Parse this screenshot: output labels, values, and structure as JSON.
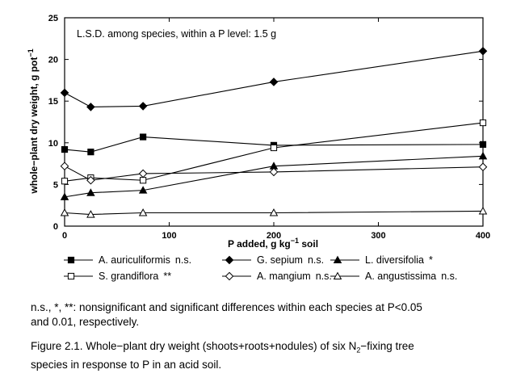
{
  "chart_data": {
    "type": "line",
    "xlabel": "P added, g kg",
    "xlabel_sup": "−1",
    "xlabel_suffix": " soil",
    "ylabel": "whole−plant dry weight, g pot",
    "ylabel_sup": "−1",
    "xlim": [
      0,
      400
    ],
    "ylim": [
      0,
      25
    ],
    "xticks": [
      0,
      100,
      200,
      300,
      400
    ],
    "yticks": [
      0,
      5,
      10,
      15,
      20,
      25
    ],
    "grid": false,
    "legend_position": "bottom",
    "annotation": "L.S.D. among species, within a P level:  1.5 g",
    "x": [
      0,
      25,
      75,
      200,
      400
    ],
    "series": [
      {
        "name": "A. auriculiformis",
        "sig": "n.s.",
        "marker": "square-filled",
        "values": [
          9.2,
          8.9,
          10.7,
          9.7,
          9.8
        ]
      },
      {
        "name": "G. sepium",
        "sig": "n.s.",
        "marker": "diamond-filled",
        "values": [
          16.0,
          14.3,
          14.4,
          17.3,
          21.0
        ]
      },
      {
        "name": "L. diversifolia",
        "sig": "*",
        "marker": "triangle-filled",
        "values": [
          3.5,
          4.0,
          4.3,
          7.2,
          8.4
        ]
      },
      {
        "name": "S. grandiflora",
        "sig": "**",
        "marker": "square-open",
        "values": [
          5.4,
          5.8,
          5.5,
          9.4,
          12.4
        ]
      },
      {
        "name": "A. mangium",
        "sig": "n.s.",
        "marker": "diamond-open",
        "values": [
          7.2,
          5.5,
          6.3,
          6.5,
          7.1
        ]
      },
      {
        "name": "A. angustissima",
        "sig": "n.s.",
        "marker": "triangle-open",
        "values": [
          1.6,
          1.4,
          1.6,
          1.6,
          1.8
        ]
      }
    ]
  },
  "footnote": {
    "line1": "n.s., *, **:  nonsignificant and significant differences within each species at P<0.05",
    "line2": "and 0.01, respectively."
  },
  "caption": {
    "prefix": "Figure 2.1.  Whole−plant dry weight (shoots+roots+nodules) of six N",
    "sub": "2",
    "middle": "−fixing tree",
    "line2": "species in response to P in an acid soil."
  }
}
